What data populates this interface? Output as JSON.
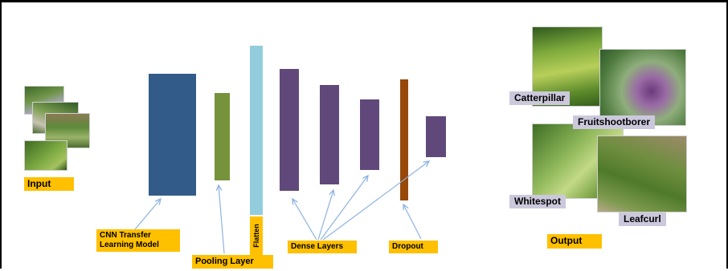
{
  "labels": {
    "input": "Input",
    "cnn": "CNN Transfer\nLearning Model",
    "pooling": "Pooling Layer",
    "flatten": "Flatten",
    "dense": "Dense Layers",
    "dropout": "Dropout",
    "output": "Output"
  },
  "classes": [
    {
      "name": "Catterpillar"
    },
    {
      "name": "Fruitshootborer"
    },
    {
      "name": "Whitespot"
    },
    {
      "name": "Leafcurl"
    }
  ],
  "colors": {
    "cnn": "#335b8a",
    "pooling": "#76933c",
    "flatten": "#93cddd",
    "dense": "#60497a",
    "dropout": "#984807",
    "label_bg": "#ffc000",
    "class_label_bg": "#ccc8dc",
    "arrow": "#8db3e2"
  }
}
